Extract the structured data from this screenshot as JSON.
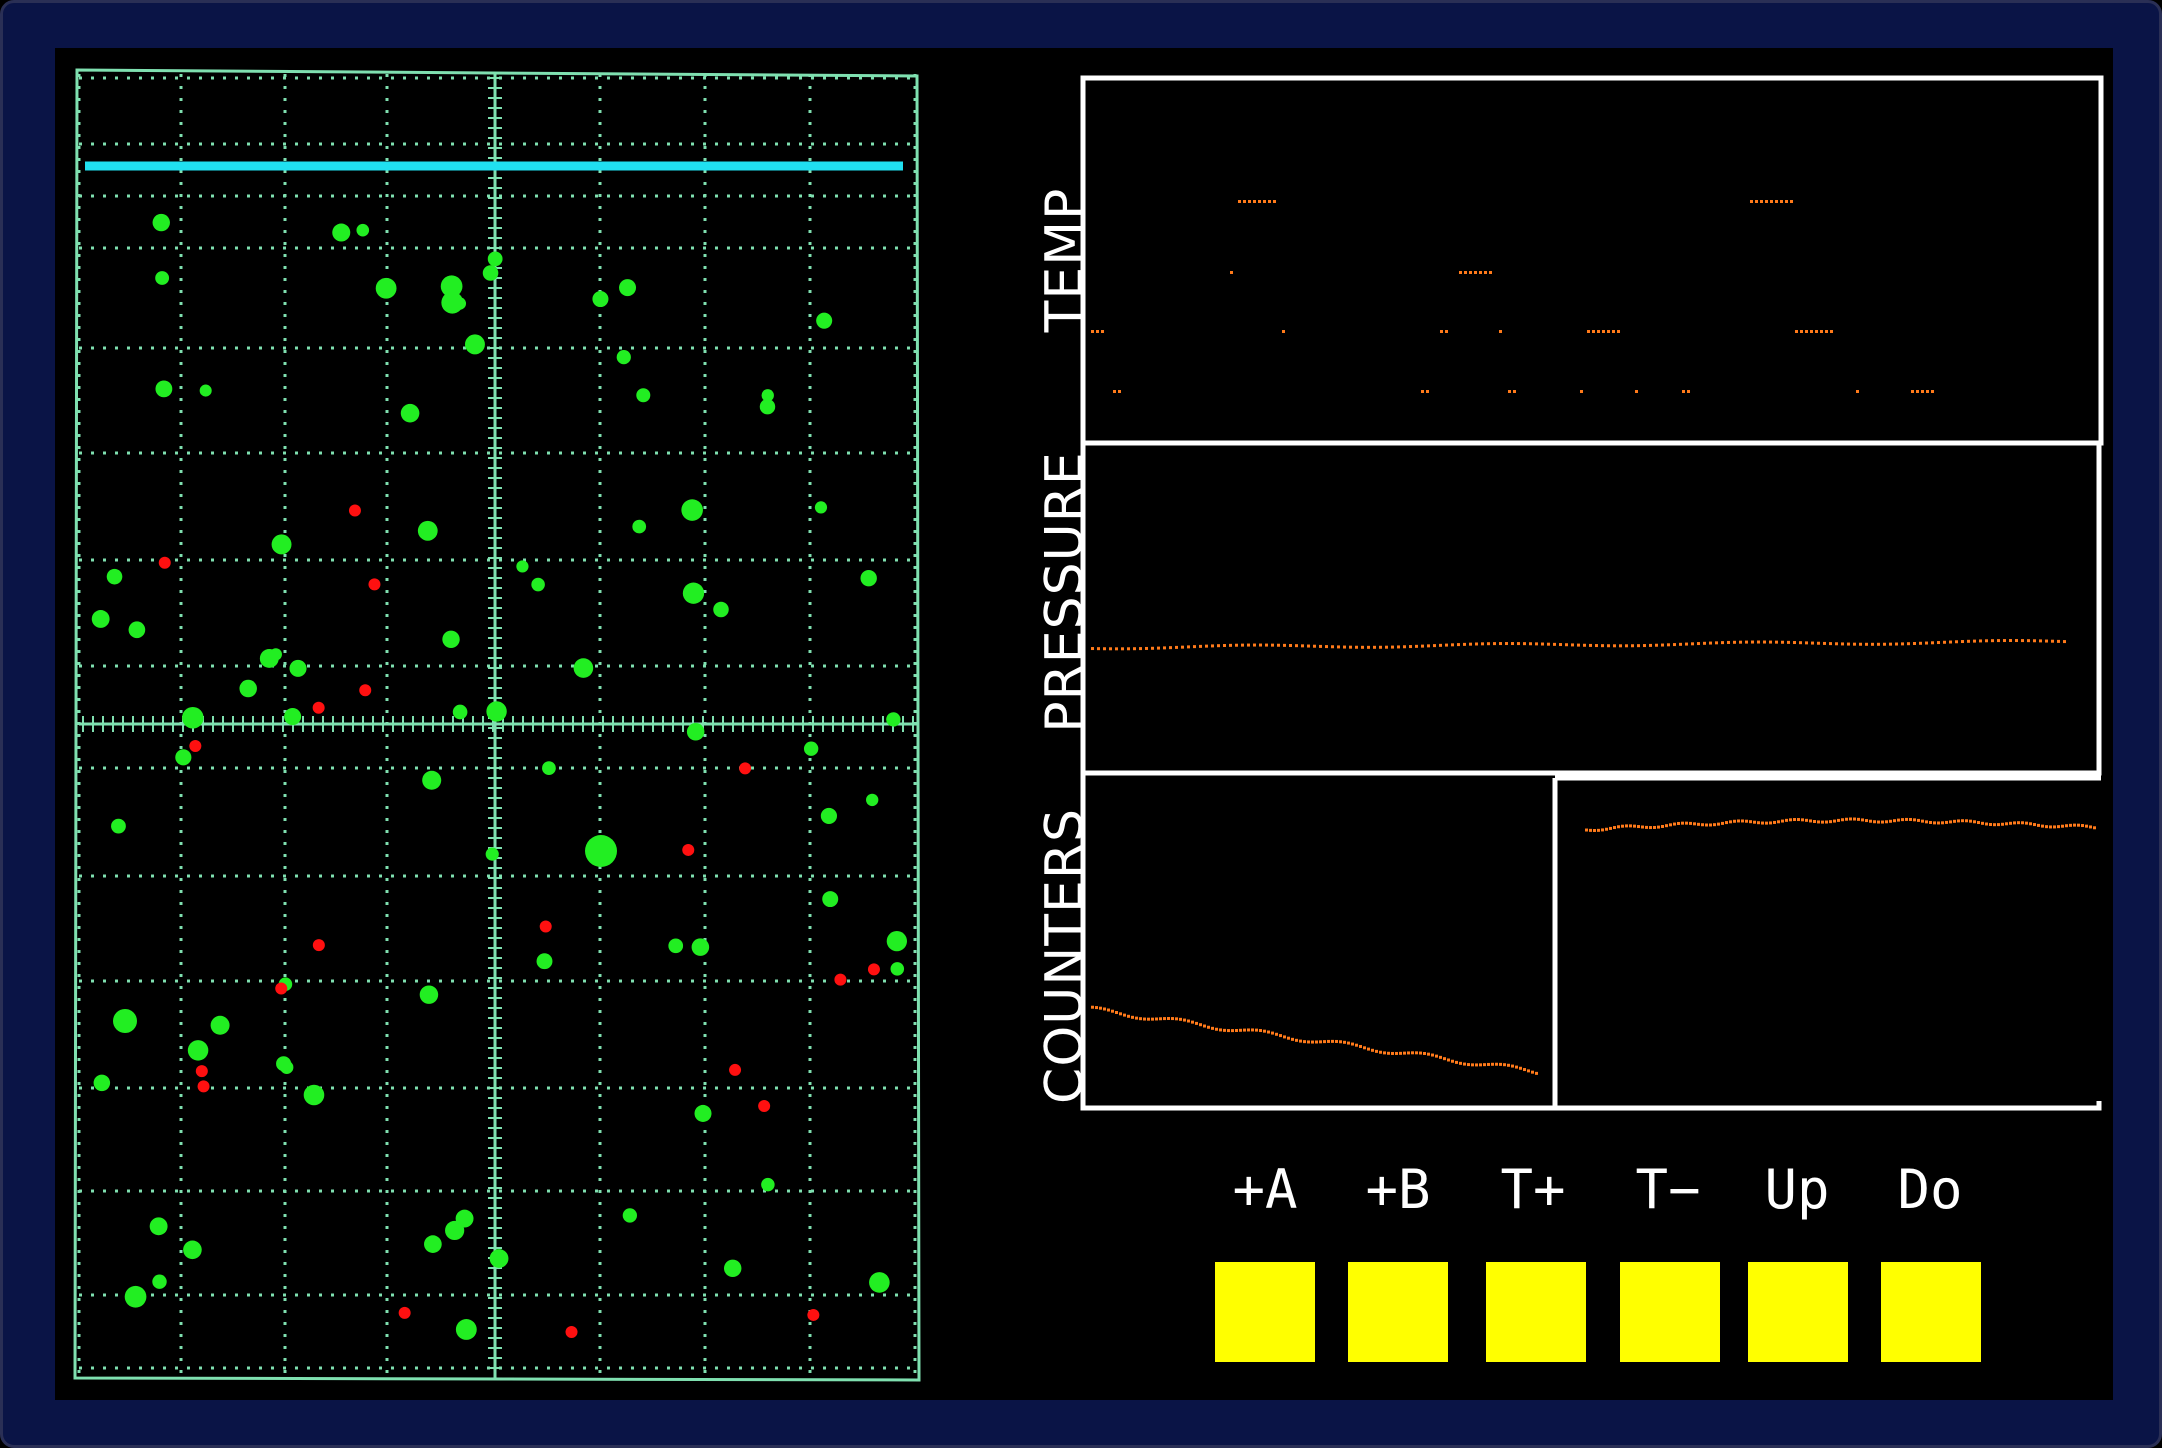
{
  "labels": {
    "temp": "TEMP",
    "pressure": "PRESSURE",
    "counters": "COUNTERS"
  },
  "buttons": [
    {
      "id": "a-plus",
      "label": "+A"
    },
    {
      "id": "b-plus",
      "label": "+B"
    },
    {
      "id": "t-plus",
      "label": "T+"
    },
    {
      "id": "t-minus",
      "label": "T−"
    },
    {
      "id": "up",
      "label": "Up"
    },
    {
      "id": "down",
      "label": "Do"
    }
  ],
  "colors": {
    "background": "#000000",
    "frame": "#0a1446",
    "grid": "#7fe0b0",
    "particle_green": "#22ee22",
    "particle_red": "#ff1010",
    "piston_line": "#20e0f0",
    "trace": "#ff7a1a",
    "panel_border": "#ffffff",
    "button": "#ffff00"
  },
  "simulation": {
    "green_particles": 82,
    "red_particles": 20
  }
}
